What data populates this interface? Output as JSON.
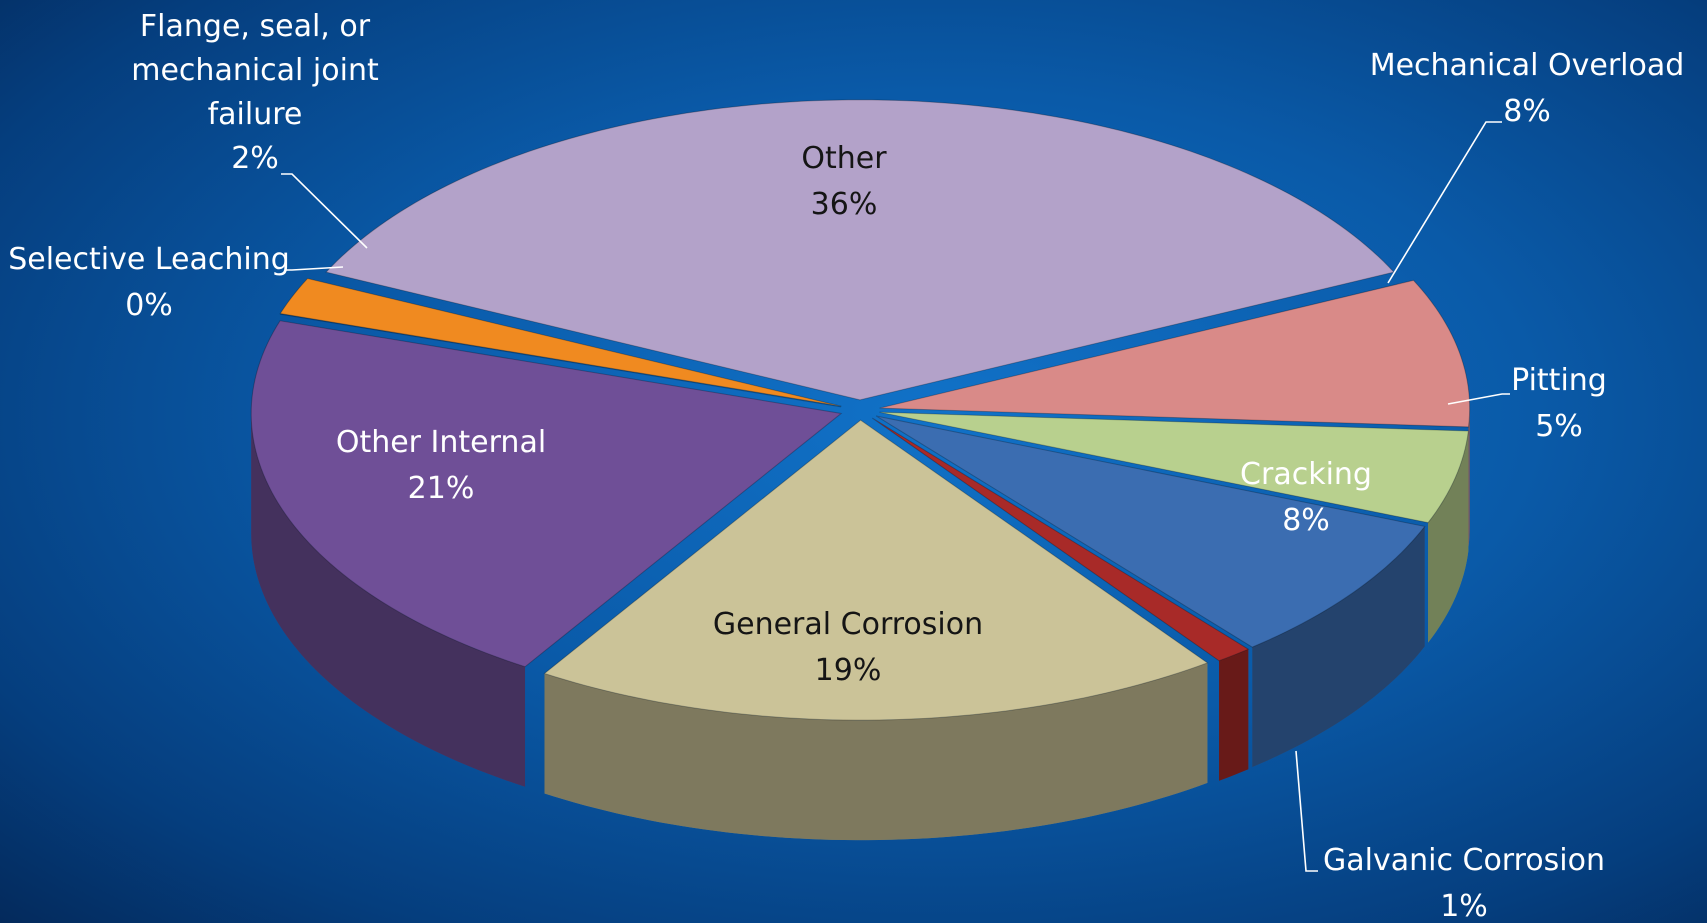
{
  "chart_data": {
    "type": "pie",
    "categories": [
      "Other",
      "Mechanical Overload",
      "Pitting",
      "Cracking",
      "Galvanic Corrosion",
      "General Corrosion",
      "Other Internal",
      "Selective Leaching",
      "Flange, seal, or mechanical joint failure"
    ],
    "values": [
      36,
      8,
      5,
      8,
      1,
      19,
      21,
      0,
      2
    ],
    "value_labels": [
      "36%",
      "8%",
      "5%",
      "8%",
      "1%",
      "19%",
      "21%",
      "0%",
      "2%"
    ],
    "colors": [
      "#b3a2c9",
      "#d98a88",
      "#b8d08e",
      "#3b6db1",
      "#a82a28",
      "#cbc398",
      "#6f4f97",
      "#2aa3bb",
      "#f08a20"
    ]
  }
}
